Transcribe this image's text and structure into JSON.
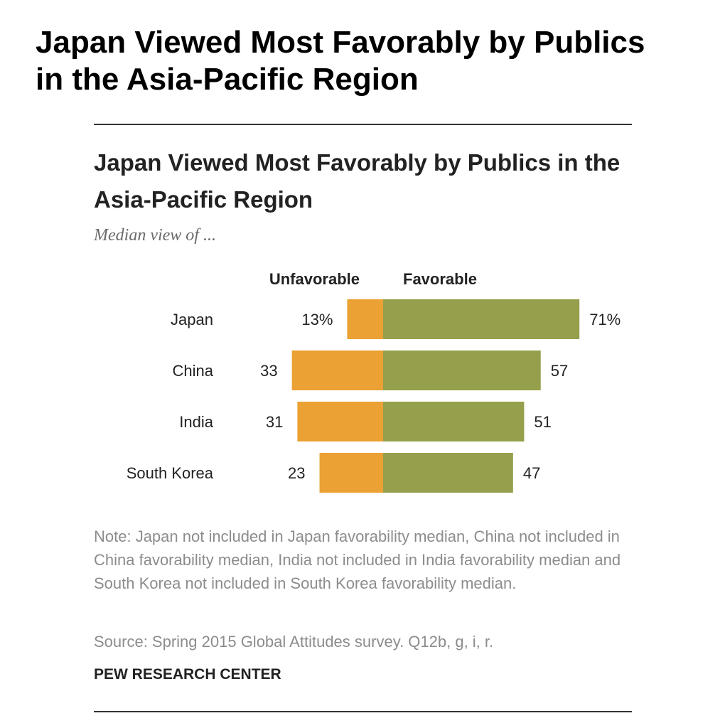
{
  "outer_title": "Japan Viewed Most Favorably by Publics in the Asia-Pacific Region",
  "chart_data": {
    "type": "bar",
    "title": "Japan Viewed Most Favorably by Publics in the Asia-Pacific Region",
    "subtitle": "Median view of ...",
    "categories": [
      "Japan",
      "China",
      "India",
      "South Korea"
    ],
    "series": [
      {
        "name": "Unfavorable",
        "values": [
          13,
          33,
          31,
          23
        ],
        "labels": [
          "13%",
          "33",
          "31",
          "23"
        ],
        "color": "#EBA133"
      },
      {
        "name": "Favorable",
        "values": [
          71,
          57,
          51,
          47
        ],
        "labels": [
          "71%",
          "57",
          "51",
          "47"
        ],
        "color": "#969F4B"
      }
    ],
    "orientation": "horizontal",
    "layout": "diverging",
    "grid": false
  },
  "note": "Note: Japan not included in Japan favorability median, China not included in China favorability median, India not included in India favorability median and South Korea not included in South Korea favorability median.",
  "source": "Source: Spring 2015 Global Attitudes survey. Q12b, g, i, r.",
  "credit": "PEW RESEARCH CENTER"
}
